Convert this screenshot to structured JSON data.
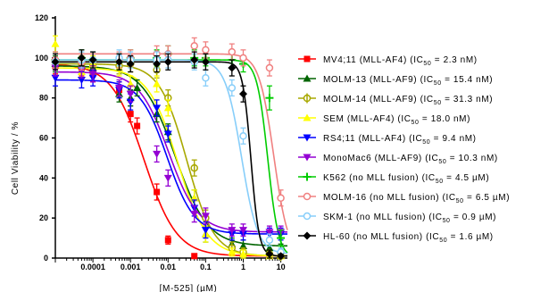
{
  "chart_data": {
    "type": "scatter",
    "xlabel": "[M-525] (µM)",
    "ylabel": "Cell Viability / %",
    "xscale": "log",
    "xlim": [
      1e-05,
      15
    ],
    "ylim": [
      0,
      120
    ],
    "x_ticks": [
      0.0001,
      0.001,
      0.01,
      0.1,
      1,
      10
    ],
    "x_tick_labels": [
      "0.0001",
      "0.001",
      "0.01",
      "0.1",
      "1",
      "10"
    ],
    "y_ticks": [
      0,
      20,
      40,
      60,
      80,
      100,
      120
    ],
    "y_tick_labels": [
      "0",
      "20",
      "40",
      "60",
      "80",
      "100",
      "120"
    ],
    "legend_position": "right",
    "fit": "sigmoidal dose-response curves",
    "series": [
      {
        "name": "MV4;11 (MLL-AF4) (IC 50 = 2.3 nM)",
        "label_main": "MV4;11 (MLL-AF4) (IC",
        "label_sub": "50",
        "label_tail": " = 2.3 nM)",
        "color": "#ff0000",
        "marker": "square",
        "x": [
          1e-05,
          5e-05,
          0.0001,
          0.0005,
          0.001,
          0.0015,
          0.005,
          0.01,
          0.05
        ],
        "y": [
          96,
          95,
          92,
          84,
          72,
          66,
          33,
          9,
          1
        ],
        "err": [
          4,
          4,
          4,
          4,
          4,
          4,
          4,
          2,
          1
        ],
        "fit": {
          "top": 97,
          "bottom": 1,
          "ic50": 0.0023,
          "hill": 1.0
        }
      },
      {
        "name": "MOLM-13 (MLL-AF9) (IC 50 = 15.4 nM)",
        "label_main": "MOLM-13 (MLL-AF9) (IC",
        "label_sub": "50",
        "label_tail": " = 15.4 nM)",
        "color": "#006400",
        "marker": "triangle-up",
        "x": [
          1e-05,
          5e-05,
          0.0001,
          0.0005,
          0.001,
          0.0015,
          0.005,
          0.01,
          0.05,
          0.1,
          0.5,
          1,
          5,
          10
        ],
        "y": [
          97,
          96,
          95,
          82,
          80,
          85,
          72,
          63,
          30,
          12,
          7,
          6,
          5,
          4
        ],
        "err": [
          4,
          4,
          4,
          4,
          4,
          4,
          4,
          4,
          4,
          4,
          3,
          3,
          3,
          3
        ],
        "fit": {
          "top": 96,
          "bottom": 6,
          "ic50": 0.0154,
          "hill": 1.0
        }
      },
      {
        "name": "MOLM-14 (MLL-AF9) (IC 50 = 31.3 nM)",
        "label_main": "MOLM-14 (MLL-AF9) (IC",
        "label_sub": "50",
        "label_tail": " = 31.3 nM)",
        "color": "#a8a800",
        "marker": "circle-cross",
        "x": [
          1e-05,
          5e-05,
          0.0001,
          0.0005,
          0.001,
          0.005,
          0.01,
          0.05,
          0.1,
          0.5,
          1,
          5,
          10
        ],
        "y": [
          98,
          97,
          96,
          96,
          97,
          94,
          80,
          45,
          20,
          5,
          3,
          2,
          1
        ],
        "err": [
          4,
          4,
          4,
          4,
          4,
          4,
          4,
          4,
          4,
          3,
          2,
          2,
          1
        ],
        "fit": {
          "top": 97,
          "bottom": 1,
          "ic50": 0.0313,
          "hill": 1.2
        }
      },
      {
        "name": "SEM (MLL-AF4) (IC 50 = 18.0 nM)",
        "label_main": "SEM (MLL-AF4) (IC",
        "label_sub": "50",
        "label_tail": " = 18.0 nM)",
        "color": "#ffff00",
        "marker": "triangle-up",
        "x": [
          1e-05,
          5e-05,
          0.0001,
          0.0005,
          0.001,
          0.005,
          0.01,
          0.05,
          0.1,
          0.5,
          1,
          5,
          10
        ],
        "y": [
          107,
          93,
          97,
          95,
          87,
          87,
          75,
          30,
          12,
          3,
          2,
          1,
          1
        ],
        "err": [
          4,
          4,
          4,
          4,
          4,
          4,
          4,
          4,
          4,
          2,
          2,
          1,
          1
        ],
        "fit": {
          "top": 95,
          "bottom": 1,
          "ic50": 0.018,
          "hill": 1.1
        }
      },
      {
        "name": "RS4;11 (MLL-AF4) (IC 50 = 9.4 nM)",
        "label_main": "RS4;11 (MLL-AF4) (IC",
        "label_sub": "50",
        "label_tail": " = 9.4 nM)",
        "color": "#0000ff",
        "marker": "triangle-down",
        "x": [
          1e-05,
          5e-05,
          0.0001,
          0.0005,
          0.001,
          0.005,
          0.01,
          0.05,
          0.1,
          0.5,
          1,
          5,
          10
        ],
        "y": [
          90,
          89,
          90,
          84,
          78,
          75,
          62,
          25,
          14,
          12,
          12,
          12,
          12
        ],
        "err": [
          4,
          4,
          4,
          4,
          4,
          4,
          4,
          4,
          4,
          3,
          3,
          3,
          3
        ],
        "fit": {
          "top": 89,
          "bottom": 12,
          "ic50": 0.0094,
          "hill": 1.2
        }
      },
      {
        "name": "MonoMac6 (MLL-AF9) (IC 50 = 10.3 nM)",
        "label_main": "MonoMac6 (MLL-AF9) (IC",
        "label_sub": "50",
        "label_tail": " = 10.3 nM)",
        "color": "#9400d3",
        "marker": "triangle-down",
        "x": [
          1e-05,
          5e-05,
          0.0001,
          0.0005,
          0.001,
          0.005,
          0.01,
          0.05,
          0.1,
          0.5,
          1,
          5,
          10
        ],
        "y": [
          95,
          94,
          92,
          85,
          82,
          52,
          40,
          22,
          21,
          14,
          14,
          13,
          13
        ],
        "err": [
          4,
          4,
          4,
          4,
          4,
          4,
          4,
          4,
          4,
          3,
          3,
          3,
          3
        ],
        "fit": {
          "top": 93,
          "bottom": 13,
          "ic50": 0.0103,
          "hill": 1.1
        }
      },
      {
        "name": "K562 (no MLL fusion) (IC 50 = 4.5 µM)",
        "label_main": "K562 (no MLL fusion) (IC",
        "label_sub": "50",
        "label_tail": " = 4.5 µM)",
        "color": "#00cc00",
        "marker": "plus",
        "x": [
          1e-05,
          5e-05,
          0.0001,
          0.0005,
          0.001,
          0.005,
          0.01,
          0.05,
          0.1,
          0.5,
          1,
          5,
          10
        ],
        "y": [
          99,
          100,
          99,
          98,
          100,
          100,
          102,
          100,
          100,
          99,
          97,
          80,
          10
        ],
        "err": [
          4,
          4,
          4,
          4,
          4,
          4,
          4,
          4,
          4,
          4,
          4,
          6,
          4
        ],
        "fit": {
          "top": 99,
          "bottom": 0,
          "ic50": 4.5,
          "hill": 3.0
        }
      },
      {
        "name": "MOLM-16 (no MLL fusion) (IC 50 = 6.5 µM)",
        "label_main": "MOLM-16 (no MLL fusion) (IC",
        "label_sub": "50",
        "label_tail": " = 6.5 µM)",
        "color": "#f08080",
        "marker": "circle-open",
        "x": [
          1e-05,
          5e-05,
          0.0001,
          0.0005,
          0.001,
          0.005,
          0.01,
          0.05,
          0.1,
          0.5,
          1,
          5,
          10
        ],
        "y": [
          99,
          98,
          99,
          99,
          100,
          102,
          102,
          106,
          104,
          103,
          100,
          95,
          30
        ],
        "err": [
          4,
          4,
          4,
          4,
          4,
          4,
          4,
          4,
          4,
          4,
          4,
          4,
          4
        ],
        "fit": {
          "top": 102,
          "bottom": 0,
          "ic50": 6.5,
          "hill": 2.2
        }
      },
      {
        "name": "SKM-1 (no MLL fusion) (IC 50 = 0.9 µM)",
        "label_main": "SKM-1 (no MLL fusion) (IC",
        "label_sub": "50",
        "label_tail": " = 0.9 µM)",
        "color": "#87cefa",
        "marker": "circle-open",
        "x": [
          1e-05,
          5e-05,
          0.0001,
          0.0005,
          0.001,
          0.005,
          0.01,
          0.05,
          0.1,
          0.5,
          1,
          5,
          10
        ],
        "y": [
          98,
          99,
          99,
          100,
          99,
          99,
          99,
          98,
          90,
          85,
          61,
          9,
          3
        ],
        "err": [
          4,
          4,
          4,
          4,
          4,
          4,
          4,
          4,
          4,
          4,
          4,
          3,
          2
        ],
        "fit": {
          "top": 99,
          "bottom": 2,
          "ic50": 0.9,
          "hill": 2.0
        }
      },
      {
        "name": "HL-60 (no MLL fusion) (IC 50 = 1.6 µM)",
        "label_main": "HL-60 (no MLL fusion) (IC",
        "label_sub": "50",
        "label_tail": " = 1.6 µM)",
        "color": "#000000",
        "marker": "diamond",
        "x": [
          1e-05,
          5e-05,
          0.0001,
          0.0005,
          0.001,
          0.005,
          0.01,
          0.05,
          0.1,
          0.5,
          1,
          5,
          10
        ],
        "y": [
          98,
          100,
          99,
          98,
          97,
          97,
          98,
          99,
          98,
          95,
          82,
          2,
          1
        ],
        "err": [
          4,
          4,
          4,
          4,
          4,
          4,
          4,
          4,
          4,
          4,
          4,
          2,
          1
        ],
        "fit": {
          "top": 98,
          "bottom": 1,
          "ic50": 1.6,
          "hill": 4.0
        }
      }
    ]
  }
}
